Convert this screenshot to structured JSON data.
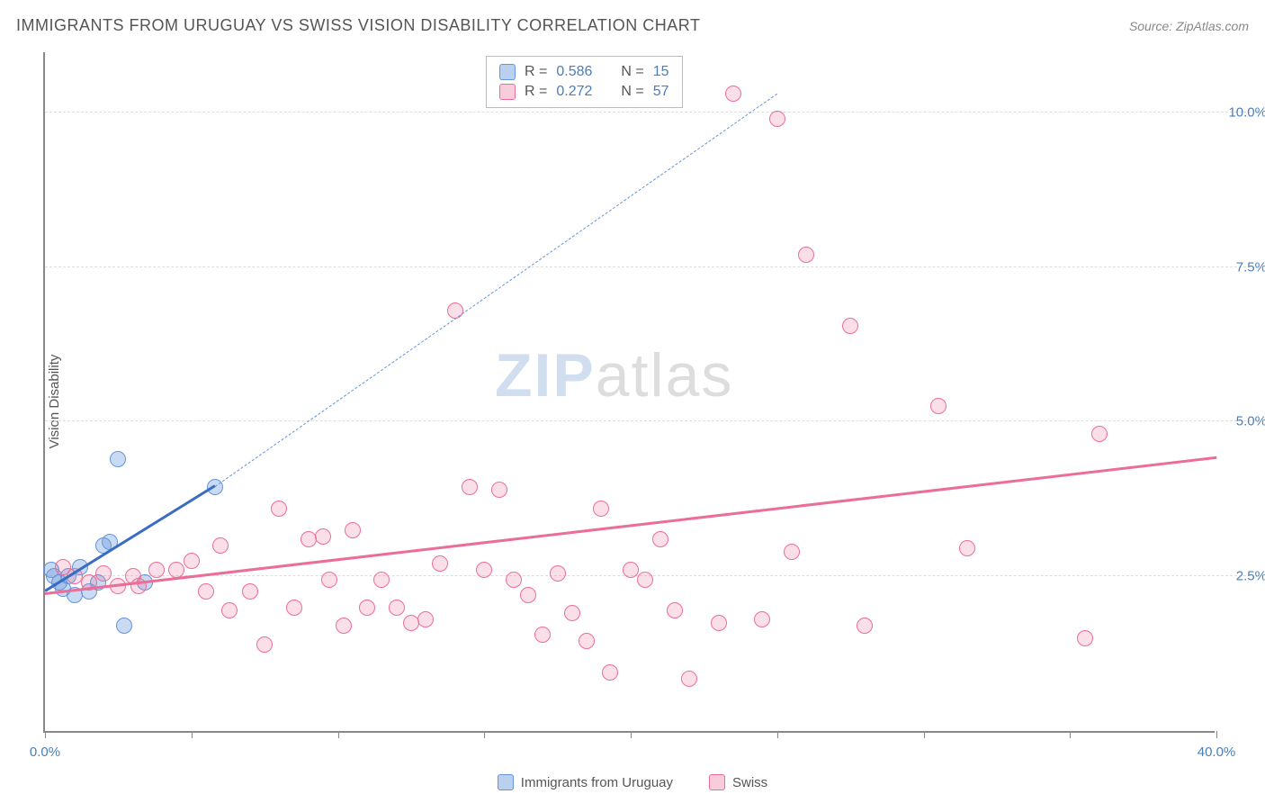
{
  "header": {
    "title": "IMMIGRANTS FROM URUGUAY VS SWISS VISION DISABILITY CORRELATION CHART",
    "source": "Source: ZipAtlas.com"
  },
  "chart": {
    "type": "scatter",
    "ylabel": "Vision Disability",
    "background_color": "#ffffff",
    "grid_color": "#dddddd",
    "axis_color": "#888888",
    "xlim": [
      0,
      40
    ],
    "ylim": [
      0,
      11
    ],
    "xtick_positions": [
      0,
      5,
      10,
      15,
      20,
      25,
      30,
      35,
      40
    ],
    "xtick_labels": {
      "0": "0.0%",
      "40": "40.0%"
    },
    "ytick_positions": [
      2.5,
      5.0,
      7.5,
      10.0
    ],
    "ytick_labels": [
      "2.5%",
      "5.0%",
      "7.5%",
      "10.0%"
    ],
    "marker_radius": 9,
    "series": [
      {
        "name": "Immigrants from Uruguay",
        "color": "#6495dc",
        "fill": "rgba(100,150,220,0.35)",
        "R": 0.586,
        "N": 15,
        "regression": {
          "x0": 0.0,
          "y0": 2.25,
          "x1": 5.8,
          "y1": 3.95,
          "dash_to": {
            "x": 25.0,
            "y": 10.3
          }
        },
        "points": [
          [
            0.2,
            2.6
          ],
          [
            0.3,
            2.5
          ],
          [
            0.5,
            2.4
          ],
          [
            0.6,
            2.3
          ],
          [
            0.8,
            2.5
          ],
          [
            1.0,
            2.2
          ],
          [
            1.2,
            2.65
          ],
          [
            1.5,
            2.25
          ],
          [
            2.0,
            3.0
          ],
          [
            2.2,
            3.05
          ],
          [
            2.5,
            4.4
          ],
          [
            2.7,
            1.7
          ],
          [
            3.4,
            2.4
          ],
          [
            5.8,
            3.95
          ],
          [
            1.8,
            2.4
          ]
        ]
      },
      {
        "name": "Swiss",
        "color": "#eb6e96",
        "fill": "rgba(235,110,150,0.22)",
        "R": 0.272,
        "N": 57,
        "regression": {
          "x0": 0.0,
          "y0": 2.2,
          "x1": 40.0,
          "y1": 4.4
        },
        "points": [
          [
            0.6,
            2.65
          ],
          [
            1.0,
            2.5
          ],
          [
            1.5,
            2.4
          ],
          [
            2.0,
            2.55
          ],
          [
            2.5,
            2.35
          ],
          [
            3.0,
            2.5
          ],
          [
            3.2,
            2.35
          ],
          [
            3.8,
            2.6
          ],
          [
            4.5,
            2.6
          ],
          [
            5.0,
            2.75
          ],
          [
            5.5,
            2.25
          ],
          [
            6.0,
            3.0
          ],
          [
            6.3,
            1.95
          ],
          [
            7.0,
            2.25
          ],
          [
            7.5,
            1.4
          ],
          [
            8.0,
            3.6
          ],
          [
            8.5,
            2.0
          ],
          [
            9.0,
            3.1
          ],
          [
            9.5,
            3.15
          ],
          [
            9.7,
            2.45
          ],
          [
            10.2,
            1.7
          ],
          [
            10.5,
            3.25
          ],
          [
            11.0,
            2.0
          ],
          [
            11.5,
            2.45
          ],
          [
            12.0,
            2.0
          ],
          [
            12.5,
            1.75
          ],
          [
            13.0,
            1.8
          ],
          [
            13.5,
            2.7
          ],
          [
            14.0,
            6.8
          ],
          [
            14.5,
            3.95
          ],
          [
            15.0,
            2.6
          ],
          [
            15.5,
            3.9
          ],
          [
            16.0,
            2.45
          ],
          [
            16.5,
            2.2
          ],
          [
            17.0,
            1.55
          ],
          [
            17.5,
            2.55
          ],
          [
            18.0,
            1.9
          ],
          [
            18.5,
            1.45
          ],
          [
            19.0,
            3.6
          ],
          [
            19.3,
            0.95
          ],
          [
            20.0,
            2.6
          ],
          [
            20.5,
            2.45
          ],
          [
            21.0,
            3.1
          ],
          [
            21.5,
            1.95
          ],
          [
            22.0,
            0.85
          ],
          [
            23.0,
            1.75
          ],
          [
            23.5,
            10.3
          ],
          [
            24.5,
            1.8
          ],
          [
            25.0,
            9.9
          ],
          [
            25.5,
            2.9
          ],
          [
            26.0,
            7.7
          ],
          [
            27.5,
            6.55
          ],
          [
            28.0,
            1.7
          ],
          [
            30.5,
            5.25
          ],
          [
            31.5,
            2.95
          ],
          [
            36.0,
            4.8
          ],
          [
            35.5,
            1.5
          ]
        ]
      }
    ],
    "watermark": {
      "text_strong": "ZIP",
      "text_rest": "atlas"
    },
    "legend_top": {
      "rows": [
        {
          "swatch": "blue",
          "r_label": "R = ",
          "r_val": "0.586",
          "n_label": "N = ",
          "n_val": "15"
        },
        {
          "swatch": "pink",
          "r_label": "R = ",
          "r_val": "0.272",
          "n_label": "N = ",
          "n_val": "57"
        }
      ]
    }
  }
}
